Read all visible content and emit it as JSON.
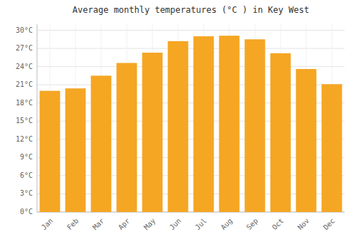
{
  "chart_data": {
    "type": "bar",
    "title": "Average monthly temperatures (°C ) in Key West",
    "categories": [
      "Jan",
      "Feb",
      "Mar",
      "Apr",
      "May",
      "Jun",
      "Jul",
      "Aug",
      "Sep",
      "Oct",
      "Nov",
      "Dec"
    ],
    "values": [
      20.0,
      20.4,
      22.5,
      24.6,
      26.3,
      28.2,
      29.0,
      29.1,
      28.5,
      26.2,
      23.6,
      21.1
    ],
    "color": "#F5A623",
    "ylim": [
      0,
      31
    ],
    "yticks": [
      {
        "value": 0,
        "label": "0°C"
      },
      {
        "value": 3,
        "label": "3°C"
      },
      {
        "value": 6,
        "label": "6°C"
      },
      {
        "value": 9,
        "label": "9°C"
      },
      {
        "value": 12,
        "label": "12°C"
      },
      {
        "value": 15,
        "label": "15°C"
      },
      {
        "value": 18,
        "label": "18°C"
      },
      {
        "value": 21,
        "label": "21°C"
      },
      {
        "value": 24,
        "label": "24°C"
      },
      {
        "value": 27,
        "label": "27°C"
      },
      {
        "value": 30,
        "label": "30°C"
      }
    ],
    "grid": true
  }
}
